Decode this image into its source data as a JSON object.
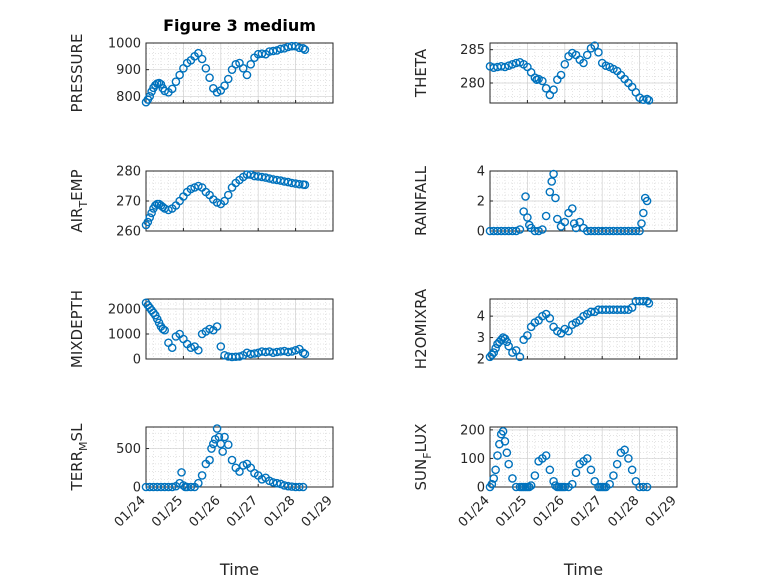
{
  "chart_data": [
    {
      "type": "scatter",
      "title": "Figure 3 medium",
      "ylabel": "PRESSURE",
      "xlabel": "",
      "xlim": [
        0,
        5
      ],
      "ylim": [
        775,
        1000
      ],
      "yticks": [
        800,
        900,
        1000
      ],
      "xticks": [],
      "xticklabels": [],
      "x": [
        0.0,
        0.05,
        0.1,
        0.15,
        0.2,
        0.25,
        0.3,
        0.35,
        0.4,
        0.45,
        0.5,
        0.6,
        0.7,
        0.8,
        0.9,
        1.0,
        1.1,
        1.2,
        1.3,
        1.4,
        1.5,
        1.6,
        1.7,
        1.8,
        1.9,
        2.0,
        2.1,
        2.2,
        2.3,
        2.4,
        2.5,
        2.6,
        2.7,
        2.8,
        2.9,
        3.0,
        3.1,
        3.2,
        3.3,
        3.4,
        3.5,
        3.6,
        3.7,
        3.8,
        3.9,
        4.0,
        4.1,
        4.2,
        4.25
      ],
      "y": [
        778,
        788,
        800,
        818,
        832,
        842,
        848,
        850,
        845,
        830,
        820,
        815,
        828,
        855,
        880,
        905,
        925,
        935,
        950,
        962,
        940,
        905,
        870,
        830,
        815,
        822,
        840,
        865,
        900,
        920,
        925,
        905,
        880,
        920,
        945,
        958,
        960,
        958,
        968,
        970,
        972,
        978,
        980,
        985,
        988,
        988,
        982,
        980,
        975
      ]
    },
    {
      "type": "scatter",
      "title": "",
      "ylabel": "THETA",
      "xlabel": "",
      "xlim": [
        0,
        5
      ],
      "ylim": [
        277,
        286
      ],
      "yticks": [
        280,
        285
      ],
      "xticks": [],
      "xticklabels": [],
      "x": [
        0.0,
        0.1,
        0.2,
        0.3,
        0.4,
        0.5,
        0.6,
        0.7,
        0.8,
        0.9,
        1.0,
        1.1,
        1.2,
        1.25,
        1.3,
        1.4,
        1.5,
        1.6,
        1.7,
        1.8,
        1.9,
        2.0,
        2.1,
        2.2,
        2.3,
        2.4,
        2.5,
        2.6,
        2.7,
        2.8,
        2.9,
        3.0,
        3.1,
        3.2,
        3.3,
        3.4,
        3.5,
        3.6,
        3.7,
        3.8,
        3.9,
        4.0,
        4.1,
        4.2,
        4.25
      ],
      "y": [
        282.5,
        282.3,
        282.4,
        282.5,
        282.4,
        282.6,
        282.8,
        283.0,
        283.1,
        282.8,
        282.4,
        281.6,
        280.8,
        280.5,
        280.6,
        280.3,
        279.2,
        278.2,
        279.0,
        280.5,
        281.2,
        282.8,
        284.0,
        284.5,
        284.2,
        283.5,
        283.0,
        284.2,
        285.2,
        285.6,
        284.6,
        283.0,
        282.6,
        282.4,
        282.1,
        281.8,
        281.2,
        280.6,
        280.0,
        279.4,
        278.6,
        277.8,
        277.5,
        277.6,
        277.4
      ]
    },
    {
      "type": "scatter",
      "title": "",
      "ylabel": "AIR_TEMP",
      "xlabel": "",
      "xlim": [
        0,
        5
      ],
      "ylim": [
        260,
        280
      ],
      "yticks": [
        260,
        270,
        280
      ],
      "xticks": [],
      "xticklabels": [],
      "x": [
        0.0,
        0.05,
        0.1,
        0.15,
        0.2,
        0.25,
        0.3,
        0.35,
        0.4,
        0.45,
        0.5,
        0.6,
        0.7,
        0.8,
        0.9,
        1.0,
        1.1,
        1.2,
        1.3,
        1.4,
        1.5,
        1.6,
        1.7,
        1.8,
        1.9,
        2.0,
        2.1,
        2.2,
        2.3,
        2.4,
        2.5,
        2.6,
        2.7,
        2.8,
        2.9,
        3.0,
        3.1,
        3.2,
        3.3,
        3.4,
        3.5,
        3.6,
        3.7,
        3.8,
        3.9,
        4.0,
        4.1,
        4.2,
        4.25
      ],
      "y": [
        262,
        263,
        264.5,
        266,
        267.5,
        268.5,
        269,
        269,
        268.5,
        268,
        267.5,
        267,
        267.5,
        268.5,
        270,
        271.5,
        273,
        274,
        274.5,
        275,
        274.5,
        273,
        272,
        270.5,
        269.5,
        269,
        270,
        272,
        274.5,
        276,
        277,
        278,
        278.8,
        278.8,
        278.3,
        278.2,
        278.0,
        277.8,
        277.5,
        277.2,
        277.0,
        276.8,
        276.5,
        276.3,
        276,
        275.8,
        275.6,
        275.5,
        275.4
      ]
    },
    {
      "type": "scatter",
      "title": "",
      "ylabel": "RAINFALL",
      "xlabel": "",
      "xlim": [
        0,
        5
      ],
      "ylim": [
        0,
        4
      ],
      "yticks": [
        0,
        2,
        4
      ],
      "xticks": [],
      "xticklabels": [],
      "x": [
        0.0,
        0.1,
        0.2,
        0.3,
        0.4,
        0.5,
        0.6,
        0.7,
        0.8,
        0.9,
        0.95,
        1.0,
        1.05,
        1.1,
        1.2,
        1.3,
        1.4,
        1.5,
        1.6,
        1.65,
        1.7,
        1.75,
        1.8,
        1.9,
        2.0,
        2.1,
        2.2,
        2.25,
        2.3,
        2.4,
        2.5,
        2.6,
        2.7,
        2.8,
        2.9,
        3.0,
        3.1,
        3.2,
        3.3,
        3.4,
        3.5,
        3.6,
        3.7,
        3.8,
        3.9,
        4.0,
        4.05,
        4.1,
        4.15,
        4.2
      ],
      "y": [
        0,
        0,
        0,
        0,
        0,
        0,
        0,
        0,
        0.1,
        1.3,
        2.3,
        0.9,
        0.4,
        0.2,
        0,
        0,
        0.1,
        1.0,
        2.6,
        3.3,
        3.8,
        2.2,
        0.8,
        0.3,
        0.6,
        1.2,
        1.5,
        0.5,
        0.2,
        0.6,
        0.2,
        0,
        0,
        0,
        0,
        0,
        0,
        0,
        0,
        0,
        0,
        0,
        0,
        0,
        0,
        0,
        0.5,
        1.2,
        2.2,
        2.0
      ]
    },
    {
      "type": "scatter",
      "title": "",
      "ylabel": "MIXDEPTH",
      "xlabel": "",
      "xlim": [
        0,
        5
      ],
      "ylim": [
        0,
        2400
      ],
      "yticks": [
        0,
        1000,
        2000
      ],
      "xticks": [],
      "xticklabels": [],
      "x": [
        0.0,
        0.05,
        0.1,
        0.15,
        0.2,
        0.25,
        0.3,
        0.35,
        0.4,
        0.45,
        0.5,
        0.6,
        0.7,
        0.8,
        0.9,
        1.0,
        1.1,
        1.2,
        1.3,
        1.4,
        1.5,
        1.6,
        1.7,
        1.8,
        1.9,
        2.0,
        2.1,
        2.2,
        2.3,
        2.4,
        2.5,
        2.6,
        2.7,
        2.8,
        2.9,
        3.0,
        3.1,
        3.2,
        3.3,
        3.4,
        3.5,
        3.6,
        3.7,
        3.8,
        3.9,
        4.0,
        4.1,
        4.2,
        4.25
      ],
      "y": [
        2250,
        2150,
        2050,
        1950,
        1850,
        1750,
        1600,
        1450,
        1300,
        1200,
        1150,
        650,
        450,
        900,
        1000,
        800,
        600,
        450,
        500,
        350,
        1000,
        1100,
        1200,
        1150,
        1300,
        500,
        150,
        100,
        80,
        90,
        100,
        150,
        250,
        200,
        220,
        250,
        300,
        280,
        300,
        250,
        280,
        300,
        320,
        280,
        300,
        350,
        400,
        250,
        200
      ]
    },
    {
      "type": "scatter",
      "title": "",
      "ylabel": "H2OMIXRA",
      "xlabel": "",
      "xlim": [
        0,
        5
      ],
      "ylim": [
        2,
        4.8
      ],
      "yticks": [
        2,
        3,
        4
      ],
      "xticks": [],
      "xticklabels": [],
      "x": [
        0.0,
        0.05,
        0.1,
        0.15,
        0.2,
        0.25,
        0.3,
        0.35,
        0.4,
        0.45,
        0.5,
        0.6,
        0.7,
        0.8,
        0.9,
        1.0,
        1.1,
        1.2,
        1.3,
        1.4,
        1.5,
        1.6,
        1.7,
        1.8,
        1.9,
        2.0,
        2.1,
        2.2,
        2.3,
        2.4,
        2.5,
        2.6,
        2.7,
        2.8,
        2.9,
        3.0,
        3.1,
        3.2,
        3.3,
        3.4,
        3.5,
        3.6,
        3.7,
        3.8,
        3.9,
        4.0,
        4.1,
        4.2,
        4.25
      ],
      "y": [
        2.1,
        2.2,
        2.3,
        2.5,
        2.7,
        2.8,
        2.9,
        3.0,
        2.95,
        2.8,
        2.6,
        2.3,
        2.4,
        2.1,
        2.9,
        3.1,
        3.5,
        3.7,
        3.8,
        4.0,
        4.1,
        3.9,
        3.5,
        3.3,
        3.2,
        3.4,
        3.3,
        3.6,
        3.7,
        3.8,
        4.0,
        4.1,
        4.2,
        4.2,
        4.3,
        4.3,
        4.3,
        4.3,
        4.3,
        4.3,
        4.3,
        4.3,
        4.3,
        4.4,
        4.7,
        4.7,
        4.7,
        4.7,
        4.6
      ]
    },
    {
      "type": "scatter",
      "title": "",
      "ylabel": "TERR_MSL",
      "xlabel": "Time",
      "xlim": [
        0,
        5
      ],
      "ylim": [
        0,
        780
      ],
      "yticks": [
        0,
        500
      ],
      "xticks": [
        0,
        1,
        2,
        3,
        4,
        5
      ],
      "xticklabels": [
        "01/24",
        "01/25",
        "01/26",
        "01/27",
        "01/28",
        "01/29"
      ],
      "x": [
        0.0,
        0.1,
        0.2,
        0.3,
        0.4,
        0.5,
        0.6,
        0.7,
        0.8,
        0.9,
        0.95,
        1.0,
        1.05,
        1.1,
        1.2,
        1.3,
        1.4,
        1.5,
        1.6,
        1.7,
        1.75,
        1.8,
        1.85,
        1.9,
        1.95,
        2.0,
        2.05,
        2.1,
        2.2,
        2.3,
        2.4,
        2.5,
        2.6,
        2.7,
        2.8,
        2.9,
        3.0,
        3.1,
        3.2,
        3.3,
        3.4,
        3.5,
        3.6,
        3.7,
        3.8,
        3.9,
        4.0,
        4.1,
        4.2
      ],
      "y": [
        0,
        0,
        0,
        0,
        0,
        0,
        0,
        0,
        10,
        50,
        190,
        20,
        0,
        0,
        0,
        0,
        50,
        150,
        300,
        350,
        500,
        560,
        620,
        760,
        650,
        560,
        460,
        650,
        550,
        350,
        250,
        200,
        280,
        300,
        250,
        180,
        150,
        100,
        120,
        80,
        60,
        50,
        40,
        20,
        10,
        5,
        0,
        0,
        0
      ]
    },
    {
      "type": "scatter",
      "title": "",
      "ylabel": "SUN_FLUX",
      "xlabel": "Time",
      "xlim": [
        0,
        5
      ],
      "ylim": [
        0,
        210
      ],
      "yticks": [
        0,
        100,
        200
      ],
      "xticks": [
        0,
        1,
        2,
        3,
        4,
        5
      ],
      "xticklabels": [
        "01/24",
        "01/25",
        "01/26",
        "01/27",
        "01/28",
        "01/29"
      ],
      "x": [
        0.0,
        0.05,
        0.1,
        0.15,
        0.2,
        0.25,
        0.3,
        0.35,
        0.4,
        0.45,
        0.5,
        0.6,
        0.7,
        0.8,
        0.85,
        0.9,
        0.95,
        1.0,
        1.05,
        1.1,
        1.2,
        1.3,
        1.4,
        1.5,
        1.6,
        1.7,
        1.75,
        1.8,
        1.85,
        1.9,
        1.95,
        2.0,
        2.1,
        2.2,
        2.3,
        2.4,
        2.5,
        2.6,
        2.7,
        2.8,
        2.9,
        2.95,
        3.0,
        3.05,
        3.1,
        3.2,
        3.3,
        3.4,
        3.5,
        3.6,
        3.7,
        3.8,
        3.9,
        4.0,
        4.1,
        4.2
      ],
      "y": [
        0,
        10,
        30,
        60,
        110,
        150,
        185,
        195,
        160,
        120,
        80,
        30,
        0,
        0,
        0,
        0,
        0,
        0,
        0,
        5,
        40,
        90,
        100,
        110,
        60,
        20,
        5,
        0,
        0,
        0,
        0,
        0,
        0,
        10,
        50,
        80,
        90,
        100,
        60,
        20,
        0,
        0,
        0,
        0,
        0,
        10,
        40,
        80,
        120,
        130,
        100,
        60,
        20,
        0,
        0,
        0
      ]
    }
  ]
}
